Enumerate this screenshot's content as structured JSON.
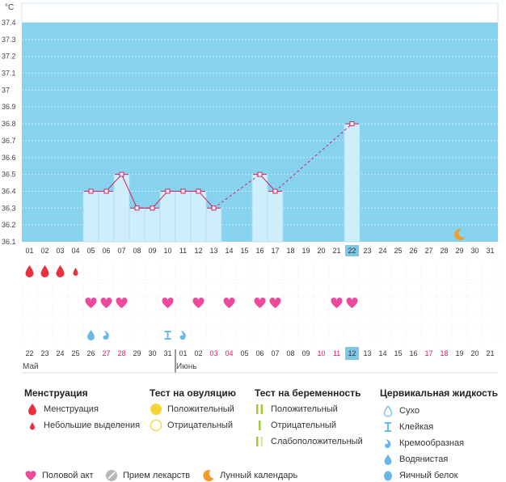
{
  "chart_data": {
    "type": "line",
    "ylabel": "°C",
    "ylim": [
      36.1,
      37.4
    ],
    "yticks": [
      "37.4",
      "37.3",
      "37.2",
      "37.1",
      "37",
      "36.9",
      "36.8",
      "36.7",
      "36.6",
      "36.5",
      "36.4",
      "36.3",
      "36.2",
      "36.1"
    ],
    "cycle_days": [
      "01",
      "02",
      "03",
      "04",
      "05",
      "06",
      "07",
      "08",
      "09",
      "10",
      "11",
      "12",
      "13",
      "14",
      "15",
      "16",
      "17",
      "18",
      "19",
      "20",
      "21",
      "22",
      "23",
      "24",
      "25",
      "26",
      "27",
      "28",
      "29",
      "30",
      "31"
    ],
    "temperatures": [
      null,
      null,
      null,
      null,
      36.4,
      36.4,
      36.5,
      36.3,
      36.3,
      36.4,
      36.4,
      36.4,
      36.3,
      null,
      null,
      36.5,
      36.4,
      null,
      null,
      null,
      null,
      36.8,
      null,
      null,
      null,
      null,
      null,
      null,
      null,
      null,
      null
    ],
    "dates": [
      "22",
      "23",
      "24",
      "25",
      "26",
      "27",
      "28",
      "29",
      "30",
      "31",
      "01",
      "02",
      "03",
      "04",
      "05",
      "06",
      "07",
      "08",
      "09",
      "10",
      "11",
      "12",
      "13",
      "14",
      "15",
      "16",
      "17",
      "18",
      "19",
      "20",
      "21"
    ],
    "weekend_dates": [
      5,
      6,
      12,
      13,
      19,
      20,
      26,
      27
    ],
    "highlight_index": 21,
    "months": [
      {
        "label": "Май",
        "index": 0
      },
      {
        "label": "Июнь",
        "index": 10
      }
    ],
    "menstruation": [
      "heavy",
      "heavy",
      "heavy",
      "light",
      null,
      null,
      null,
      null,
      null,
      null,
      null,
      null,
      null,
      null,
      null,
      null,
      null,
      null,
      null,
      null,
      null,
      null,
      null,
      null,
      null,
      null,
      null,
      null,
      null,
      null,
      null
    ],
    "intercourse": [
      4,
      5,
      6,
      9,
      11,
      13,
      15,
      16,
      20,
      21
    ],
    "cervical": [
      {
        "index": 4,
        "type": "watery"
      },
      {
        "index": 5,
        "type": "creamy"
      },
      {
        "index": 9,
        "type": "sticky"
      },
      {
        "index": 10,
        "type": "creamy"
      }
    ],
    "moon_index": 28
  },
  "legend": {
    "menstruation": {
      "title": "Менструация",
      "items": [
        "Менструация",
        "Небольшие выделения"
      ]
    },
    "ovulation": {
      "title": "Тест на овуляцию",
      "items": [
        "Положительный",
        "Отрицательный"
      ]
    },
    "pregnancy": {
      "title": "Тест на беременность",
      "items": [
        "Положительный",
        "Отрицательный",
        "Слабоположительный"
      ]
    },
    "cervical": {
      "title": "Цервикальная жидкость",
      "items": [
        "Сухо",
        "Клейкая",
        "Кремообразная",
        "Водянистая",
        "Яичный белок"
      ]
    },
    "bottom": [
      "Половой акт",
      "Прием лекарств",
      "Лунный календарь"
    ]
  },
  "colors": {
    "band": "#87d3ef",
    "bar": "#cfeefb",
    "bar_border": "#a9ddf3",
    "line": "#d01f5e",
    "red": "#e8303e",
    "heart": "#ee4a9b",
    "drop": "#69b8e8",
    "moon": "#f49b2a",
    "weekend": "#d01f5e",
    "yellow": "#f6d337",
    "green": "#a3c83c"
  }
}
